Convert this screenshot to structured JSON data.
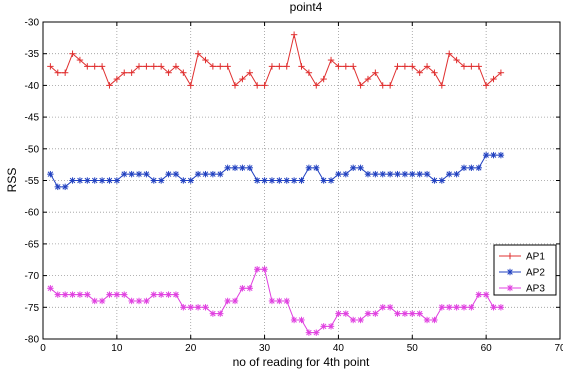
{
  "chart_data": {
    "type": "line",
    "title": "point4",
    "xlabel": "no of reading for 4th point",
    "ylabel": "RSS",
    "xlim": [
      0,
      70
    ],
    "ylim": [
      -80,
      -30
    ],
    "xticks": [
      0,
      10,
      20,
      30,
      40,
      50,
      60,
      70
    ],
    "yticks": [
      -80,
      -75,
      -70,
      -65,
      -60,
      -55,
      -50,
      -45,
      -40,
      -35,
      -30
    ],
    "grid": true,
    "legend": "bottom-right",
    "series": [
      {
        "name": "AP1",
        "color": "#e03030",
        "marker": "plus",
        "x": [
          1,
          2,
          3,
          4,
          5,
          6,
          7,
          8,
          9,
          10,
          11,
          12,
          13,
          14,
          15,
          16,
          17,
          18,
          19,
          20,
          21,
          22,
          23,
          24,
          25,
          26,
          27,
          28,
          29,
          30,
          31,
          32,
          33,
          34,
          35,
          36,
          37,
          38,
          39,
          40,
          41,
          42,
          43,
          44,
          45,
          46,
          47,
          48,
          49,
          50,
          51,
          52,
          53,
          54,
          55,
          56,
          57,
          58,
          59,
          60,
          61,
          62
        ],
        "values": [
          -37,
          -38,
          -38,
          -35,
          -36,
          -37,
          -37,
          -37,
          -40,
          -39,
          -38,
          -38,
          -37,
          -37,
          -37,
          -37,
          -38,
          -37,
          -38,
          -40,
          -35,
          -36,
          -37,
          -37,
          -37,
          -40,
          -39,
          -38,
          -40,
          -40,
          -37,
          -37,
          -37,
          -32,
          -37,
          -38,
          -40,
          -39,
          -36,
          -37,
          -37,
          -37,
          -40,
          -39,
          -38,
          -40,
          -40,
          -37,
          -37,
          -37,
          -38,
          -37,
          -38,
          -40,
          -35,
          -36,
          -37,
          -37,
          -37,
          -40,
          -39,
          -38
        ]
      },
      {
        "name": "AP2",
        "color": "#2040c0",
        "marker": "star",
        "x": [
          1,
          2,
          3,
          4,
          5,
          6,
          7,
          8,
          9,
          10,
          11,
          12,
          13,
          14,
          15,
          16,
          17,
          18,
          19,
          20,
          21,
          22,
          23,
          24,
          25,
          26,
          27,
          28,
          29,
          30,
          31,
          32,
          33,
          34,
          35,
          36,
          37,
          38,
          39,
          40,
          41,
          42,
          43,
          44,
          45,
          46,
          47,
          48,
          49,
          50,
          51,
          52,
          53,
          54,
          55,
          56,
          57,
          58,
          59,
          60,
          61,
          62
        ],
        "values": [
          -54,
          -56,
          -56,
          -55,
          -55,
          -55,
          -55,
          -55,
          -55,
          -55,
          -54,
          -54,
          -54,
          -54,
          -55,
          -55,
          -54,
          -54,
          -55,
          -55,
          -54,
          -54,
          -54,
          -54,
          -53,
          -53,
          -53,
          -53,
          -55,
          -55,
          -55,
          -55,
          -55,
          -55,
          -55,
          -53,
          -53,
          -55,
          -55,
          -54,
          -54,
          -53,
          -53,
          -54,
          -54,
          -54,
          -54,
          -54,
          -54,
          -54,
          -54,
          -54,
          -55,
          -55,
          -54,
          -54,
          -53,
          -53,
          -53,
          -51,
          -51,
          -51
        ]
      },
      {
        "name": "AP3",
        "color": "#e040e0",
        "marker": "star",
        "x": [
          1,
          2,
          3,
          4,
          5,
          6,
          7,
          8,
          9,
          10,
          11,
          12,
          13,
          14,
          15,
          16,
          17,
          18,
          19,
          20,
          21,
          22,
          23,
          24,
          25,
          26,
          27,
          28,
          29,
          30,
          31,
          32,
          33,
          34,
          35,
          36,
          37,
          38,
          39,
          40,
          41,
          42,
          43,
          44,
          45,
          46,
          47,
          48,
          49,
          50,
          51,
          52,
          53,
          54,
          55,
          56,
          57,
          58,
          59,
          60,
          61,
          62
        ],
        "values": [
          -72,
          -73,
          -73,
          -73,
          -73,
          -73,
          -74,
          -74,
          -73,
          -73,
          -73,
          -74,
          -74,
          -74,
          -73,
          -73,
          -73,
          -73,
          -75,
          -75,
          -75,
          -75,
          -76,
          -76,
          -74,
          -74,
          -72,
          -72,
          -69,
          -69,
          -74,
          -74,
          -74,
          -77,
          -77,
          -79,
          -79,
          -78,
          -78,
          -76,
          -76,
          -77,
          -77,
          -76,
          -76,
          -75,
          -75,
          -76,
          -76,
          -76,
          -76,
          -77,
          -77,
          -75,
          -75,
          -75,
          -75,
          -75,
          -73,
          -73,
          -75,
          -75
        ]
      }
    ]
  }
}
